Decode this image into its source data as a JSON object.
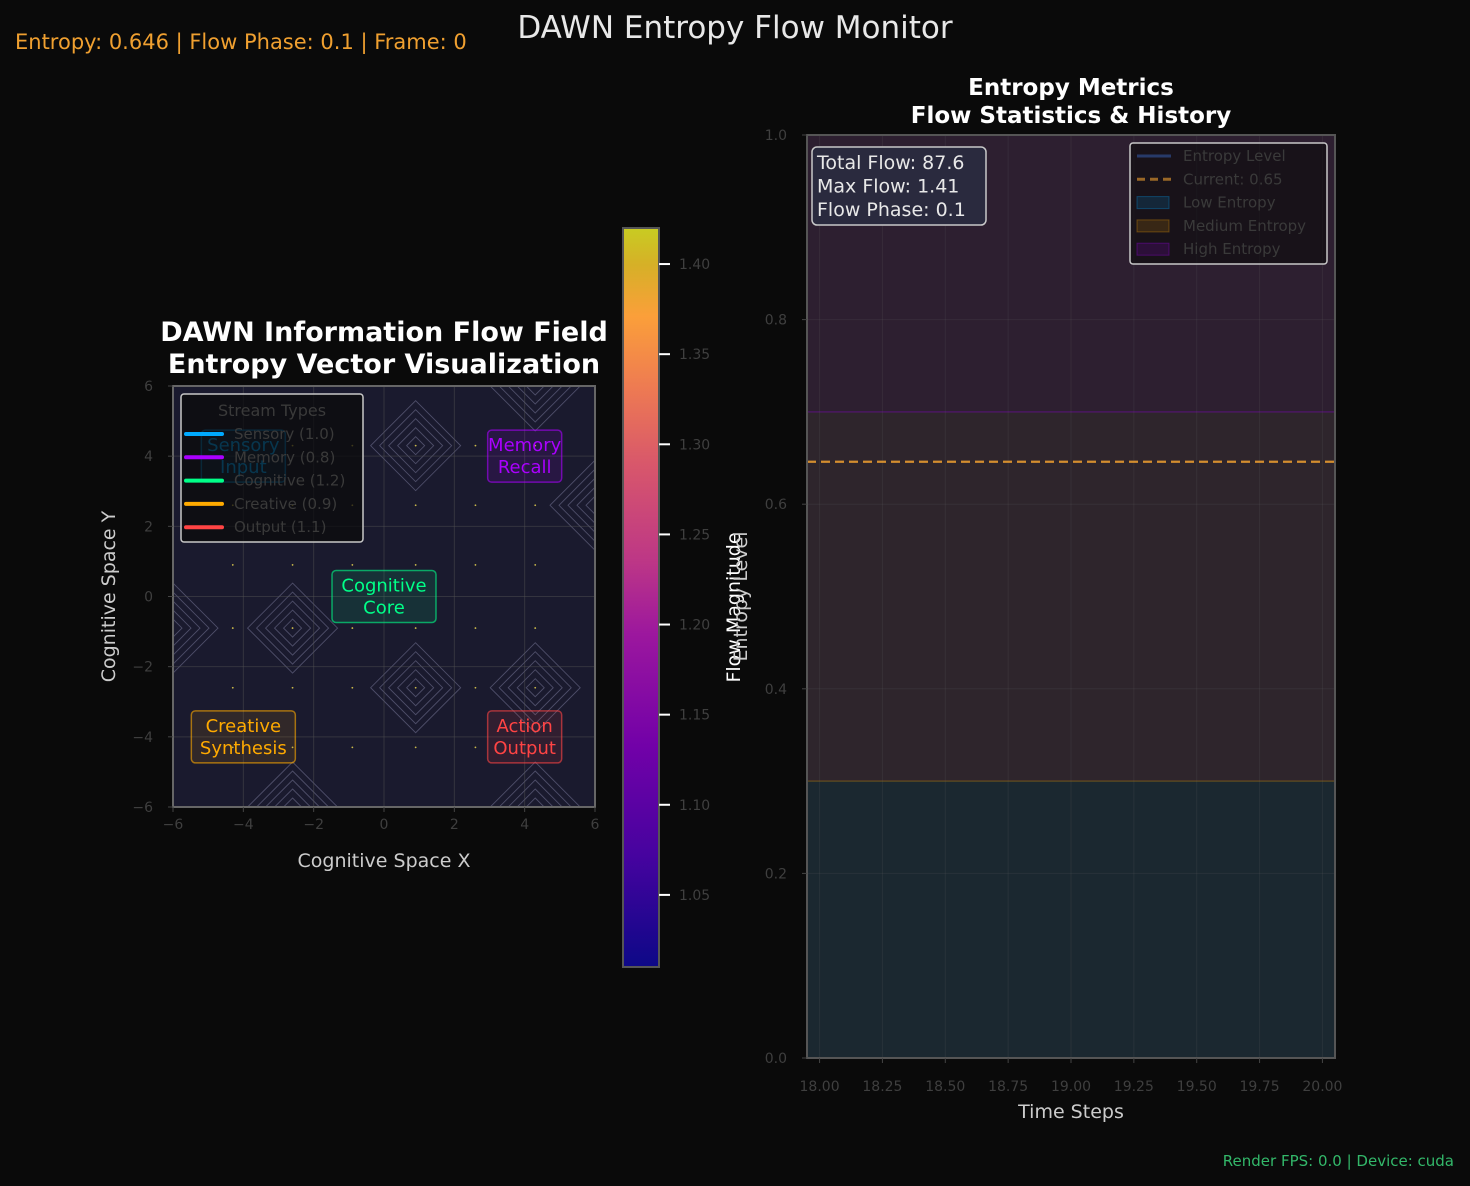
{
  "window": {
    "suptitle": "DAWN Entropy Flow Monitor",
    "status_line": "Entropy: 0.646 | Flow Phase: 0.1 | Frame: 0",
    "footer": "Render FPS: 0.0 | Device: cuda"
  },
  "chart_data": [
    {
      "type": "vector-field",
      "title": "DAWN Information Flow Field\nEntropy Vector Visualization",
      "xlabel": "Cognitive Space X",
      "ylabel": "Cognitive Space Y",
      "xlim": [
        -6,
        6
      ],
      "ylim": [
        -6,
        6
      ],
      "xticks": [
        -6,
        -4,
        -2,
        0,
        2,
        4,
        6
      ],
      "yticks": [
        -6,
        -4,
        -2,
        0,
        2,
        4,
        6
      ],
      "grid": true,
      "background": "#1a1a2e",
      "legend": {
        "title": "Stream Types",
        "placement": "upper-left",
        "entries": [
          {
            "label": "Sensory (1.0)",
            "color": "#00aaff"
          },
          {
            "label": "Memory (0.8)",
            "color": "#aa00ff"
          },
          {
            "label": "Cognitive (1.2)",
            "color": "#00ff88"
          },
          {
            "label": "Creative (0.9)",
            "color": "#ffaa00"
          },
          {
            "label": "Output (1.1)",
            "color": "#ff4444"
          }
        ]
      },
      "regions": [
        {
          "label": "Sensory\nInput",
          "x": -4.0,
          "y": 4.0,
          "color": "#00aaff"
        },
        {
          "label": "Memory\nRecall",
          "x": 4.0,
          "y": 4.0,
          "color": "#aa00ff"
        },
        {
          "label": "Cognitive\nCore",
          "x": 0.0,
          "y": 0.0,
          "color": "#00ff88"
        },
        {
          "label": "Creative\nSynthesis",
          "x": -4.0,
          "y": -4.0,
          "color": "#ffaa00"
        },
        {
          "label": "Action\nOutput",
          "x": 4.0,
          "y": -4.0,
          "color": "#ff4444"
        }
      ],
      "contour_centers": [
        {
          "x": 0.9,
          "y": 4.3
        },
        {
          "x": 0.9,
          "y": -2.6
        },
        {
          "x": 4.3,
          "y": 6.0
        },
        {
          "x": 4.3,
          "y": -2.6
        },
        {
          "x": -2.6,
          "y": -0.9
        },
        {
          "x": 6.0,
          "y": 2.6
        },
        {
          "x": -2.6,
          "y": -6.0
        },
        {
          "x": 4.3,
          "y": -6.0
        },
        {
          "x": -6.0,
          "y": -0.9
        }
      ],
      "colorbar": {
        "label": "Flow Magnitude",
        "colormap": "plasma",
        "range": [
          1.01,
          1.42
        ],
        "ticks": [
          1.05,
          1.1,
          1.15,
          1.2,
          1.25,
          1.3,
          1.35,
          1.4
        ]
      }
    },
    {
      "type": "line",
      "title": "Entropy Metrics\nFlow Statistics & History",
      "xlabel": "Time Steps",
      "ylabel": "Entropy Level",
      "xlim": [
        17.95,
        20.05
      ],
      "ylim": [
        0.0,
        1.0
      ],
      "xticks": [
        "18.00",
        "18.25",
        "18.50",
        "18.75",
        "19.00",
        "19.25",
        "19.50",
        "19.75",
        "20.00"
      ],
      "yticks": [
        "0.0",
        "0.2",
        "0.4",
        "0.6",
        "0.8",
        "1.0"
      ],
      "grid": true,
      "series": [
        {
          "name": "Entropy Level",
          "color": "#4488ff",
          "x": [],
          "y": []
        }
      ],
      "hlines": [
        {
          "name": "Current: 0.65",
          "y": 0.646,
          "color": "#f0a030",
          "style": "dashed"
        }
      ],
      "bands": [
        {
          "name": "Low Entropy",
          "from": 0.0,
          "to": 0.3,
          "color": "#00aaff"
        },
        {
          "name": "Medium Entropy",
          "from": 0.3,
          "to": 0.7,
          "color": "#ffaa00"
        },
        {
          "name": "High Entropy",
          "from": 0.7,
          "to": 1.0,
          "color": "#aa00ff"
        }
      ],
      "stats_box": [
        "Total Flow: 87.6",
        "Max Flow: 1.41",
        "Flow Phase: 0.1"
      ],
      "legend": {
        "placement": "upper-right",
        "entries": [
          "Entropy Level",
          "Current: 0.65",
          "Low Entropy",
          "Medium Entropy",
          "High Entropy"
        ]
      }
    }
  ]
}
